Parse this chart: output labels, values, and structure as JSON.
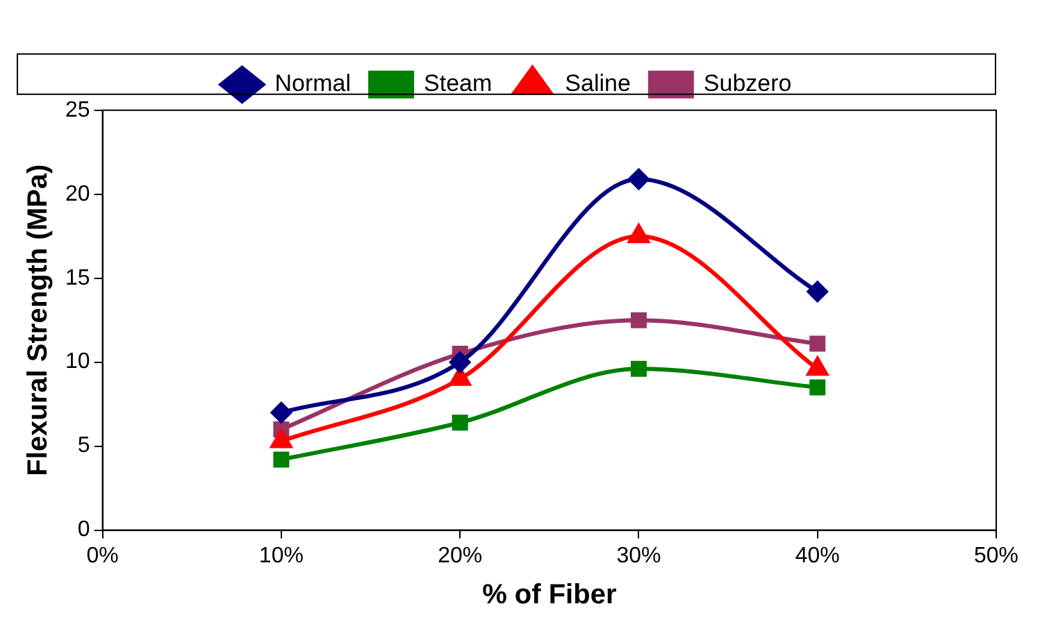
{
  "chart_data": {
    "type": "line",
    "xlabel": "% of Fiber",
    "ylabel": "Flexural Strength (MPa)",
    "x": [
      10,
      20,
      30,
      40
    ],
    "xlim": [
      0,
      50
    ],
    "xticks": [
      {
        "value": 0,
        "label": "0%"
      },
      {
        "value": 10,
        "label": "10%"
      },
      {
        "value": 20,
        "label": "20%"
      },
      {
        "value": 30,
        "label": "30%"
      },
      {
        "value": 40,
        "label": "40%"
      },
      {
        "value": 50,
        "label": "50%"
      }
    ],
    "ylim": [
      0,
      25
    ],
    "yticks": [
      0,
      5,
      10,
      15,
      20,
      25
    ],
    "grid": false,
    "legend": "top",
    "series": [
      {
        "name": "Normal",
        "color": "#000080",
        "marker": "diamond",
        "values": [
          7.0,
          10.0,
          20.9,
          14.2
        ]
      },
      {
        "name": "Steam",
        "color": "#008000",
        "marker": "square",
        "values": [
          4.2,
          6.4,
          9.6,
          8.5
        ]
      },
      {
        "name": "Saline",
        "color": "#ff0000",
        "marker": "triangle",
        "values": [
          5.3,
          9.0,
          17.5,
          9.6
        ]
      },
      {
        "name": "Subzero",
        "color": "#993366",
        "marker": "square",
        "values": [
          6.0,
          10.5,
          12.5,
          11.1
        ]
      }
    ]
  }
}
